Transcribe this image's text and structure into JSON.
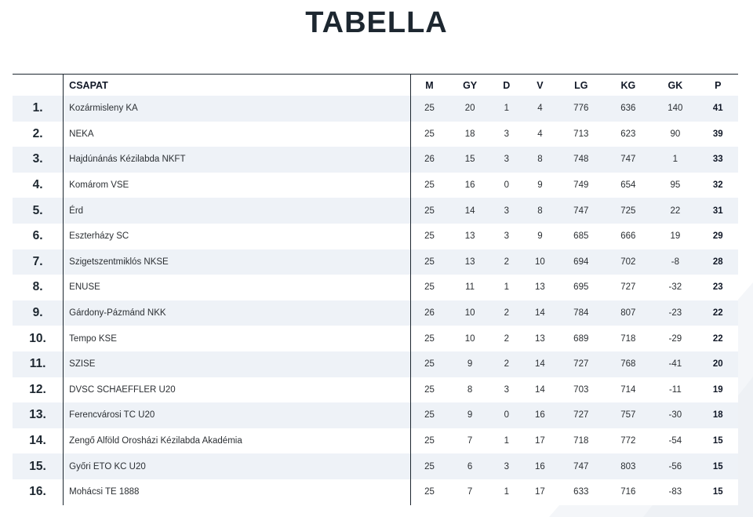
{
  "page": {
    "title": "TABELLA"
  },
  "table": {
    "headers": {
      "rank": "",
      "team": "CSAPAT",
      "m": "M",
      "gy": "GY",
      "d": "D",
      "v": "V",
      "lg": "LG",
      "kg": "KG",
      "gk": "GK",
      "p": "P"
    },
    "rows": [
      {
        "rank": "1.",
        "team": "Kozármisleny KA",
        "m": "25",
        "gy": "20",
        "d": "1",
        "v": "4",
        "lg": "776",
        "kg": "636",
        "gk": "140",
        "p": "41"
      },
      {
        "rank": "2.",
        "team": "NEKA",
        "m": "25",
        "gy": "18",
        "d": "3",
        "v": "4",
        "lg": "713",
        "kg": "623",
        "gk": "90",
        "p": "39"
      },
      {
        "rank": "3.",
        "team": "Hajdúnánás Kézilabda NKFT",
        "m": "26",
        "gy": "15",
        "d": "3",
        "v": "8",
        "lg": "748",
        "kg": "747",
        "gk": "1",
        "p": "33"
      },
      {
        "rank": "4.",
        "team": "Komárom VSE",
        "m": "25",
        "gy": "16",
        "d": "0",
        "v": "9",
        "lg": "749",
        "kg": "654",
        "gk": "95",
        "p": "32"
      },
      {
        "rank": "5.",
        "team": "Érd",
        "m": "25",
        "gy": "14",
        "d": "3",
        "v": "8",
        "lg": "747",
        "kg": "725",
        "gk": "22",
        "p": "31"
      },
      {
        "rank": "6.",
        "team": "Eszterházy SC",
        "m": "25",
        "gy": "13",
        "d": "3",
        "v": "9",
        "lg": "685",
        "kg": "666",
        "gk": "19",
        "p": "29"
      },
      {
        "rank": "7.",
        "team": "Szigetszentmiklós NKSE",
        "m": "25",
        "gy": "13",
        "d": "2",
        "v": "10",
        "lg": "694",
        "kg": "702",
        "gk": "-8",
        "p": "28"
      },
      {
        "rank": "8.",
        "team": "ENUSE",
        "m": "25",
        "gy": "11",
        "d": "1",
        "v": "13",
        "lg": "695",
        "kg": "727",
        "gk": "-32",
        "p": "23"
      },
      {
        "rank": "9.",
        "team": "Gárdony-Pázmánd NKK",
        "m": "26",
        "gy": "10",
        "d": "2",
        "v": "14",
        "lg": "784",
        "kg": "807",
        "gk": "-23",
        "p": "22"
      },
      {
        "rank": "10.",
        "team": "Tempo KSE",
        "m": "25",
        "gy": "10",
        "d": "2",
        "v": "13",
        "lg": "689",
        "kg": "718",
        "gk": "-29",
        "p": "22"
      },
      {
        "rank": "11.",
        "team": "SZISE",
        "m": "25",
        "gy": "9",
        "d": "2",
        "v": "14",
        "lg": "727",
        "kg": "768",
        "gk": "-41",
        "p": "20"
      },
      {
        "rank": "12.",
        "team": "DVSC SCHAEFFLER U20",
        "m": "25",
        "gy": "8",
        "d": "3",
        "v": "14",
        "lg": "703",
        "kg": "714",
        "gk": "-11",
        "p": "19"
      },
      {
        "rank": "13.",
        "team": "Ferencvárosi TC U20",
        "m": "25",
        "gy": "9",
        "d": "0",
        "v": "16",
        "lg": "727",
        "kg": "757",
        "gk": "-30",
        "p": "18"
      },
      {
        "rank": "14.",
        "team": "Zengő Alföld Orosházi Kézilabda Akadémia",
        "m": "25",
        "gy": "7",
        "d": "1",
        "v": "17",
        "lg": "718",
        "kg": "772",
        "gk": "-54",
        "p": "15"
      },
      {
        "rank": "15.",
        "team": "Győri ETO KC U20",
        "m": "25",
        "gy": "6",
        "d": "3",
        "v": "16",
        "lg": "747",
        "kg": "803",
        "gk": "-56",
        "p": "15"
      },
      {
        "rank": "16.",
        "team": "Mohácsi TE 1888",
        "m": "25",
        "gy": "7",
        "d": "1",
        "v": "17",
        "lg": "633",
        "kg": "716",
        "gk": "-83",
        "p": "15"
      }
    ]
  }
}
